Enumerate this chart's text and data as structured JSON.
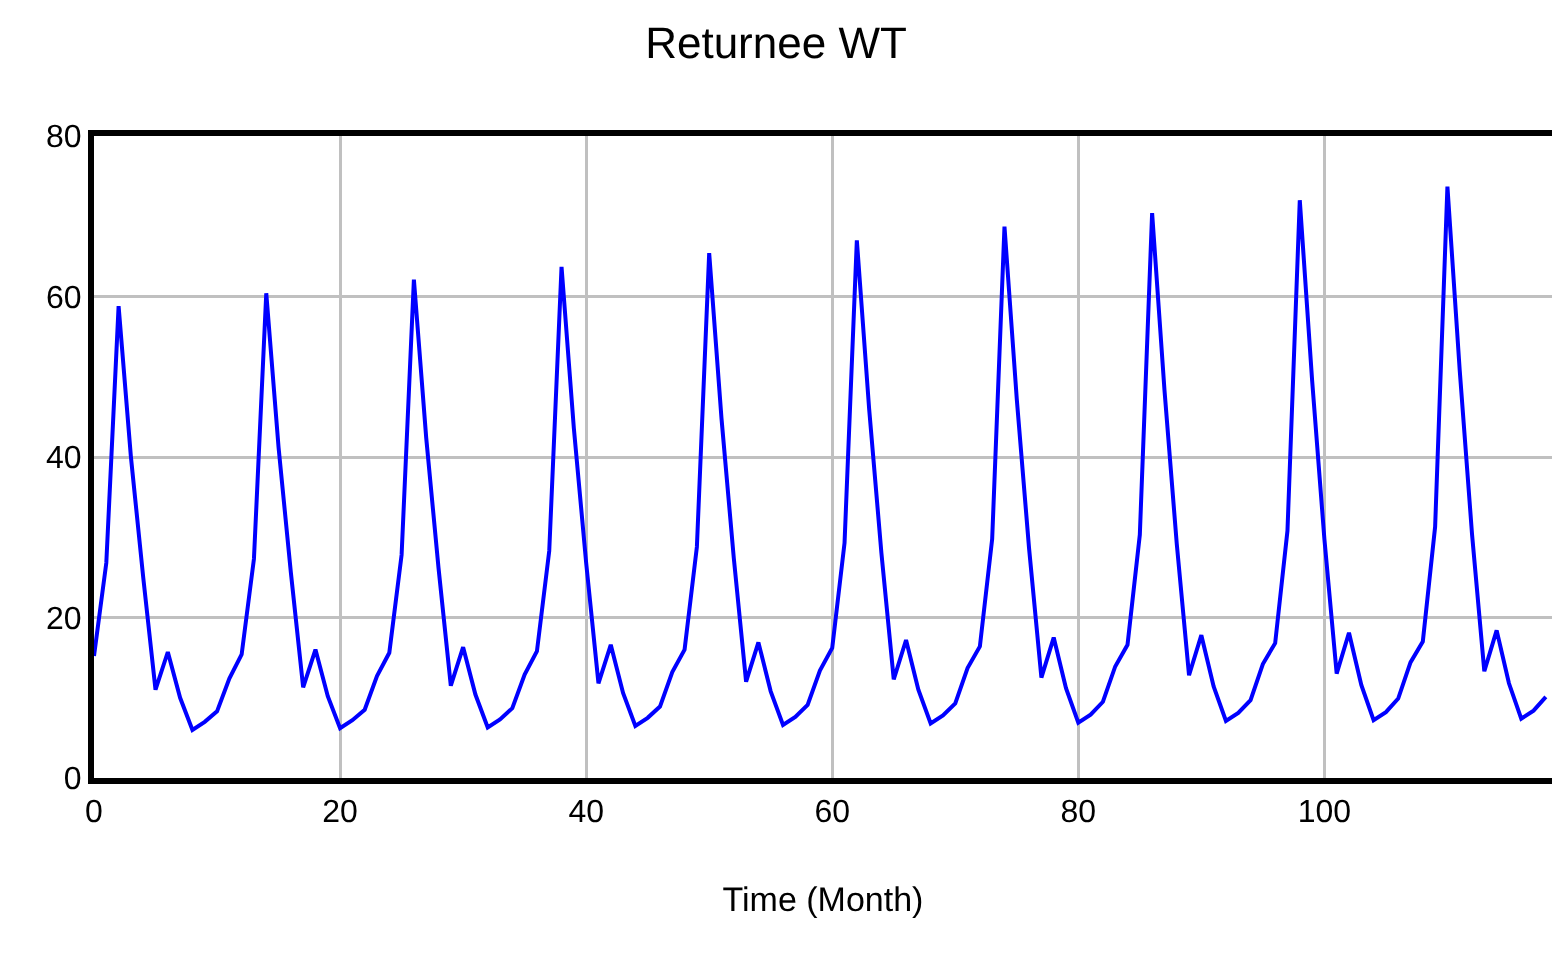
{
  "chart_data": {
    "type": "line",
    "title": "Returnee WT",
    "xlabel": "Time (Month)",
    "x": [
      0,
      1,
      2,
      3,
      4,
      5,
      6,
      7,
      8,
      9,
      10,
      11,
      12,
      13,
      14,
      15,
      16,
      17,
      18,
      19,
      20,
      21,
      22,
      23,
      24,
      25,
      26,
      27,
      28,
      29,
      30,
      31,
      32,
      33,
      34,
      35,
      36,
      37,
      38,
      39,
      40,
      41,
      42,
      43,
      44,
      45,
      46,
      47,
      48,
      49,
      50,
      51,
      52,
      53,
      54,
      55,
      56,
      57,
      58,
      59,
      60,
      61,
      62,
      63,
      64,
      65,
      66,
      67,
      68,
      69,
      70,
      71,
      72,
      73,
      74,
      75,
      76,
      77,
      78,
      79,
      80,
      81,
      82,
      83,
      84,
      85,
      86,
      87,
      88,
      89,
      90,
      91,
      92,
      93,
      94,
      95,
      96,
      97,
      98,
      99,
      100,
      101,
      102,
      103,
      104,
      105,
      106,
      107,
      108,
      109,
      110,
      111,
      112,
      113,
      114,
      115,
      116,
      117,
      118
    ],
    "series": [
      {
        "color": "#0000ff",
        "values": [
          15.2,
          26.8,
          58.8,
          40,
          25,
          11,
          15.7,
          10,
          6,
          7,
          8.3,
          12.4,
          15.4,
          27.3,
          60.4,
          41.2,
          25.6,
          11.3,
          16,
          10.2,
          6.2,
          7.2,
          8.5,
          12.7,
          15.6,
          27.8,
          62.1,
          42.4,
          26.2,
          11.5,
          16.3,
          10.4,
          6.3,
          7.3,
          8.7,
          12.9,
          15.8,
          28.3,
          63.7,
          43.6,
          26.8,
          11.8,
          16.6,
          10.6,
          6.5,
          7.5,
          8.9,
          13.2,
          16,
          28.8,
          65.4,
          44.8,
          27.4,
          12,
          16.9,
          10.8,
          6.6,
          7.6,
          9.1,
          13.4,
          16.2,
          29.3,
          67,
          46,
          28,
          12.3,
          17.2,
          11,
          6.8,
          7.8,
          9.3,
          13.7,
          16.4,
          29.8,
          68.7,
          47.2,
          28.6,
          12.5,
          17.5,
          11.2,
          6.9,
          7.9,
          9.5,
          13.9,
          16.6,
          30.3,
          70.4,
          48.4,
          29.2,
          12.8,
          17.8,
          11.4,
          7.1,
          8.1,
          9.7,
          14.2,
          16.8,
          30.8,
          72,
          49.6,
          29.8,
          13,
          18.1,
          11.6,
          7.2,
          8.2,
          9.9,
          14.4,
          17,
          31.3,
          73.7,
          50.8,
          30.4,
          13.3,
          18.4,
          11.8,
          7.4,
          8.4,
          10.1
        ]
      }
    ],
    "xlim": [
      0,
      118.5
    ],
    "xticks": [
      0,
      20,
      40,
      60,
      80,
      100
    ],
    "ylim": [
      0,
      80
    ],
    "yticks": [
      0,
      20,
      40,
      60,
      80
    ],
    "grid": true,
    "marker": "none",
    "line_style": "solid"
  }
}
